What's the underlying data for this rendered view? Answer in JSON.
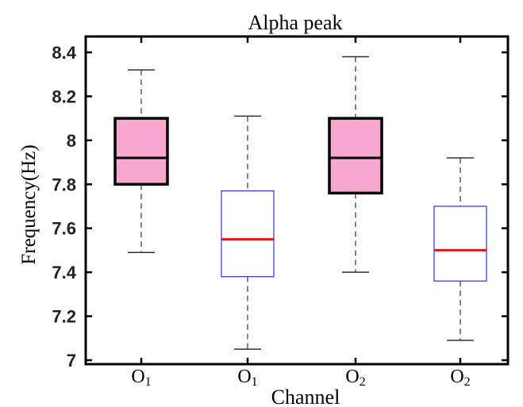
{
  "chart_data": {
    "type": "box",
    "title": "Alpha peak",
    "xlabel": "Channel",
    "ylabel": "Frequency(Hz)",
    "ylim": [
      7,
      8.45
    ],
    "yticks": [
      "7",
      "7.2",
      "7.4",
      "7.6",
      "7.8",
      "8",
      "8.2",
      "8.4"
    ],
    "categories": [
      "O1",
      "O1",
      "O2",
      "O2"
    ],
    "boxes": [
      {
        "label": "O1",
        "whisker_low": 7.49,
        "q1": 7.8,
        "median": 7.92,
        "q3": 8.1,
        "whisker_high": 8.32,
        "style": "filled"
      },
      {
        "label": "O1",
        "whisker_low": 7.05,
        "q1": 7.38,
        "median": 7.55,
        "q3": 7.77,
        "whisker_high": 8.11,
        "style": "outline"
      },
      {
        "label": "O2",
        "whisker_low": 7.4,
        "q1": 7.76,
        "median": 7.92,
        "q3": 8.1,
        "whisker_high": 8.38,
        "style": "filled"
      },
      {
        "label": "O2",
        "whisker_low": 7.09,
        "q1": 7.36,
        "median": 7.5,
        "q3": 7.7,
        "whisker_high": 7.92,
        "style": "outline"
      }
    ],
    "colors": {
      "filled_box": "#f8a7d0",
      "filled_edge": "#000000",
      "outline_edge": "#3333cc",
      "outline_median": "#e01818",
      "whisker": "#333333"
    }
  }
}
